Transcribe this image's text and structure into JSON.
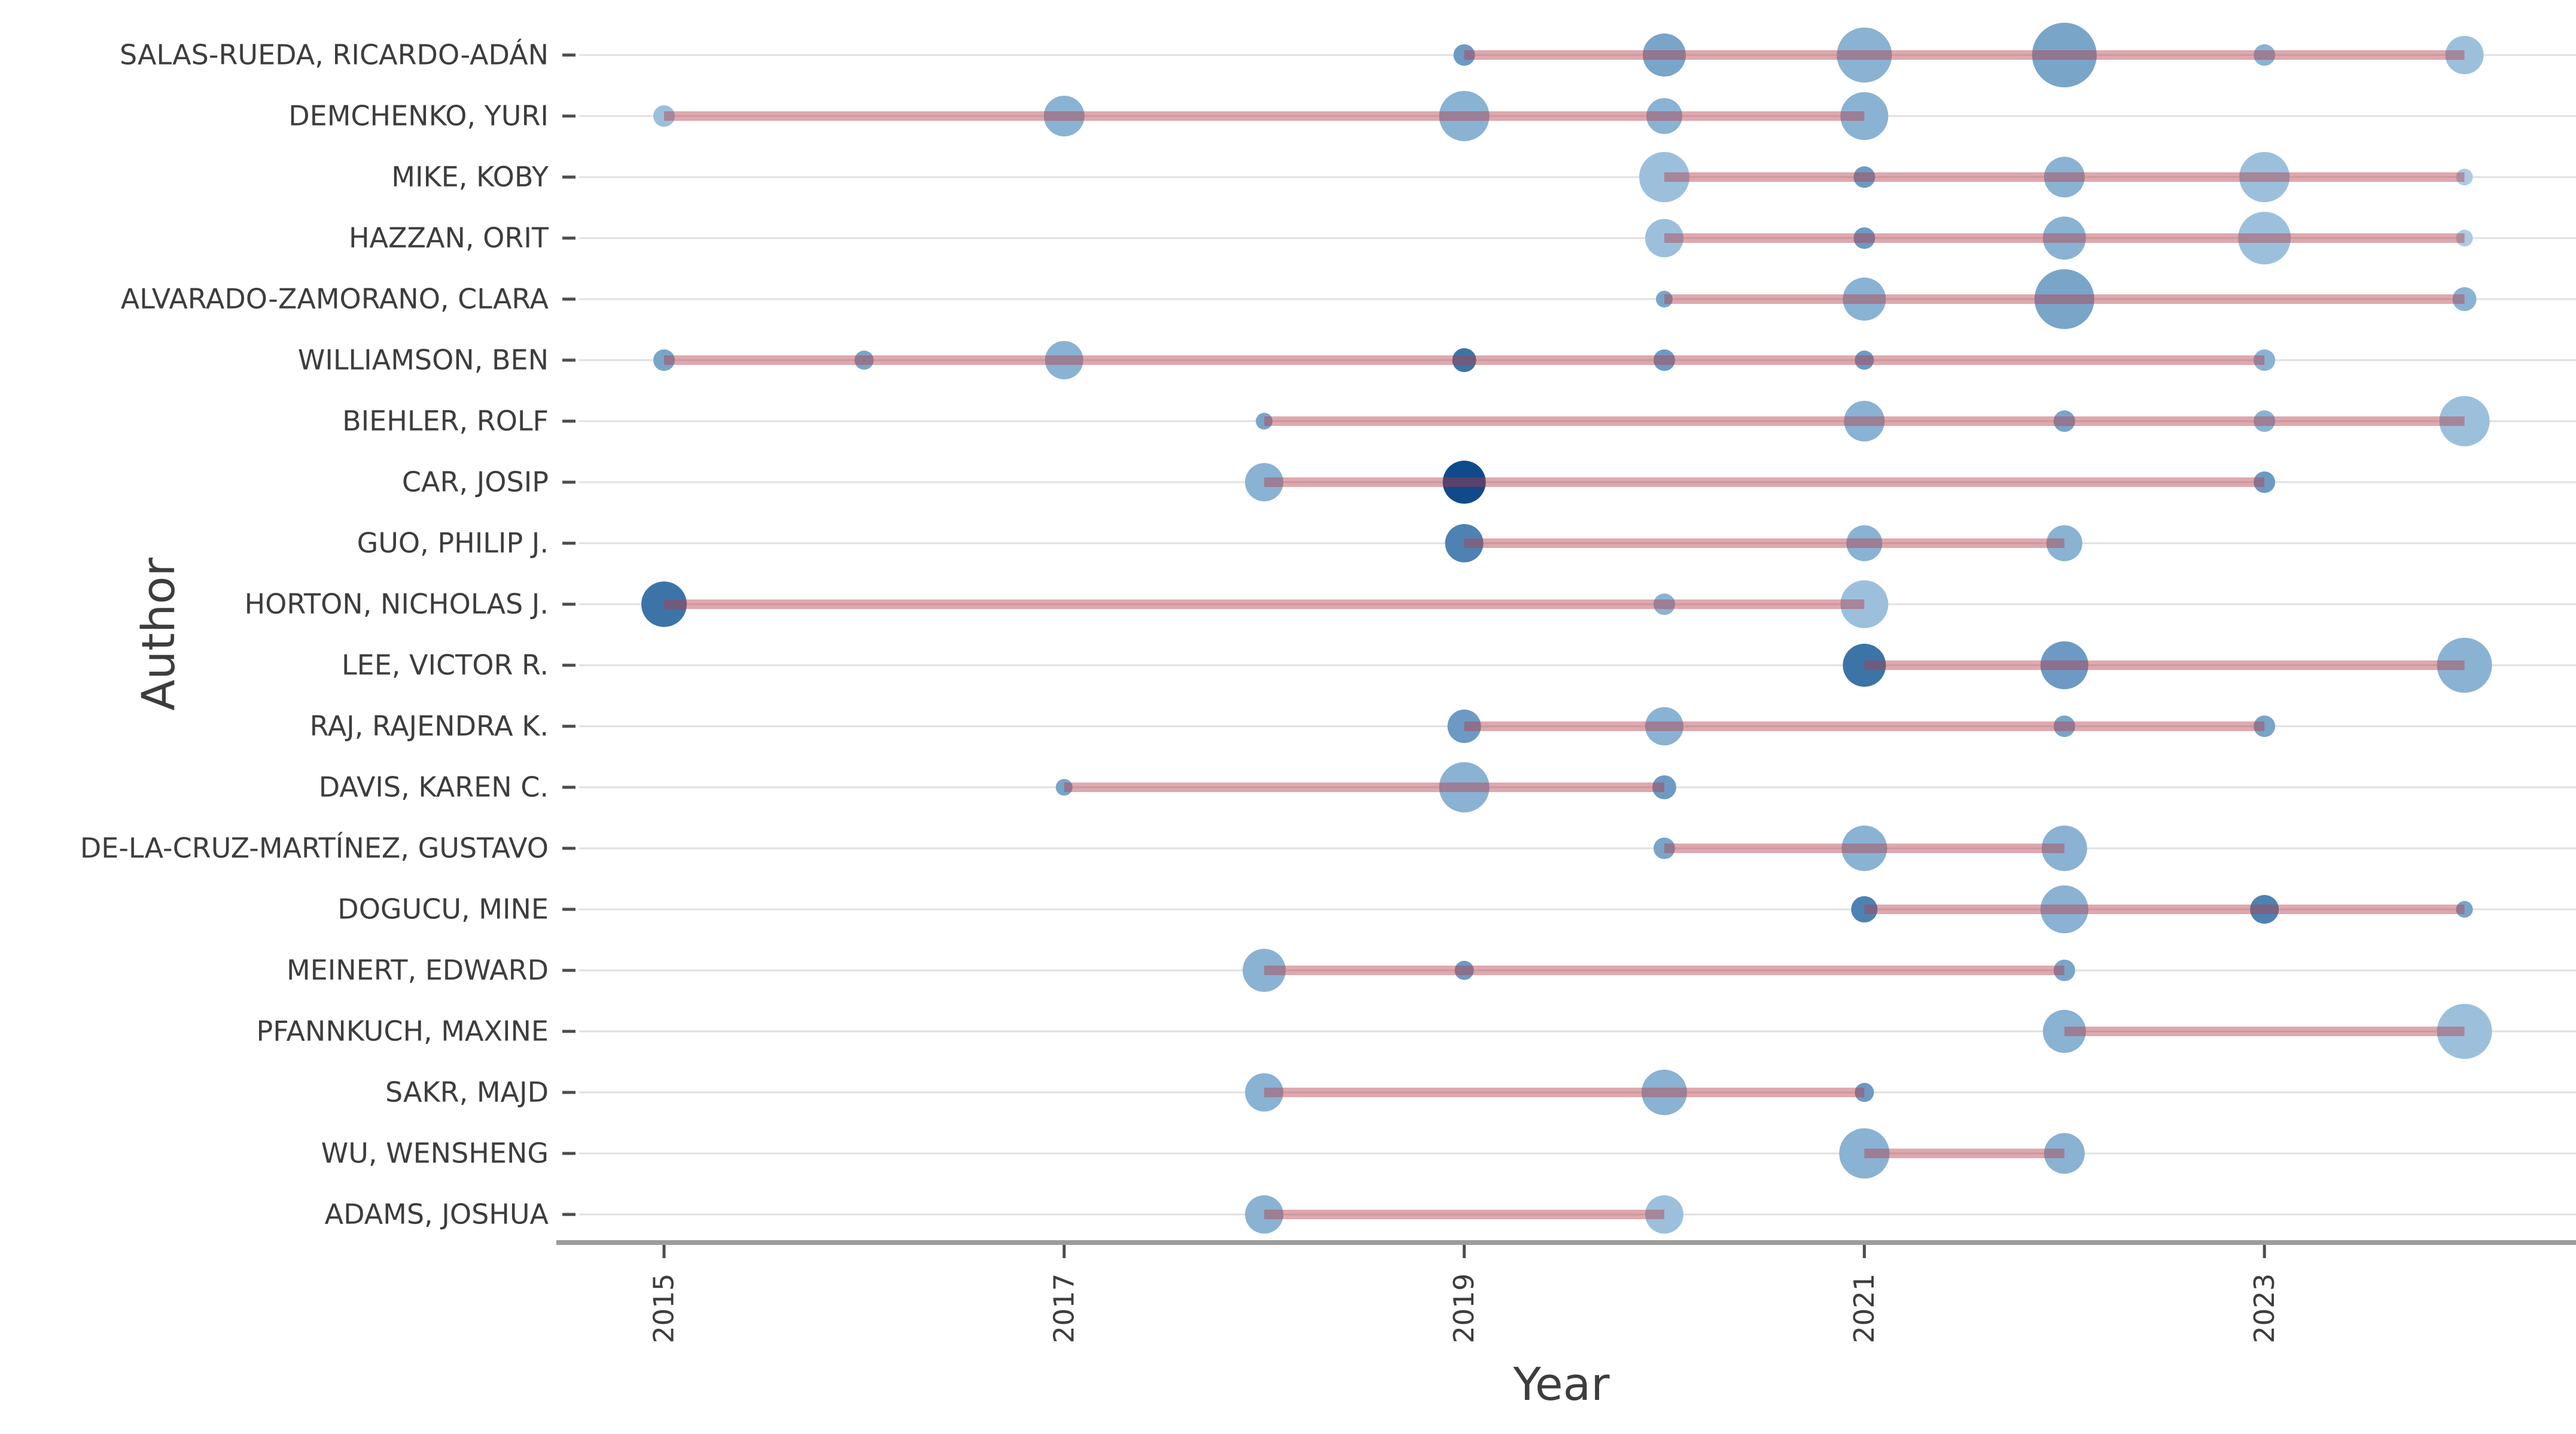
{
  "chart_data": {
    "type": "scatter",
    "subtype": "bubble-timeline",
    "title": "",
    "xlabel": "Year",
    "ylabel": "Author",
    "x_ticks": [
      2015,
      2017,
      2019,
      2021,
      2023
    ],
    "x_range": [
      2014.5,
      2024.6
    ],
    "grid": "horizontal-only",
    "legend": "none",
    "palette": {
      "l1": "#aecbe3",
      "l2": "#9cc0dc",
      "l3": "#8ab2d3",
      "m1": "#79a5c9",
      "m2": "#6d9ac4",
      "d1": "#4d82b2",
      "d2": "#3c74a8",
      "navy": "#114a8b"
    },
    "colors": {
      "timeline_line": "rgba(180,60,70,0.44)",
      "gridline": "#e0e0e0",
      "axis_line": "#9c9c9c",
      "tick_mark": "#4d4d4d",
      "text": "#3d3d3d"
    },
    "authors": [
      {
        "name": "SALAS-RUEDA, RICARDO-ADÁN",
        "line": [
          2019,
          2024
        ],
        "bubbles": [
          {
            "year": 2019,
            "r": 18,
            "shade": "m2"
          },
          {
            "year": 2020,
            "r": 36,
            "shade": "m1"
          },
          {
            "year": 2021,
            "r": 46,
            "shade": "l3"
          },
          {
            "year": 2022,
            "r": 54,
            "shade": "m1"
          },
          {
            "year": 2023,
            "r": 18,
            "shade": "l3"
          },
          {
            "year": 2024,
            "r": 32,
            "shade": "l2"
          }
        ]
      },
      {
        "name": "DEMCHENKO, YURI",
        "line": [
          2015,
          2021
        ],
        "bubbles": [
          {
            "year": 2015,
            "r": 18,
            "shade": "l2"
          },
          {
            "year": 2017,
            "r": 34,
            "shade": "l3"
          },
          {
            "year": 2019,
            "r": 42,
            "shade": "l3"
          },
          {
            "year": 2020,
            "r": 30,
            "shade": "l3"
          },
          {
            "year": 2021,
            "r": 40,
            "shade": "l3"
          }
        ]
      },
      {
        "name": "MIKE, KOBY",
        "line": [
          2020,
          2024
        ],
        "bubbles": [
          {
            "year": 2020,
            "r": 42,
            "shade": "l2"
          },
          {
            "year": 2021,
            "r": 18,
            "shade": "m2"
          },
          {
            "year": 2022,
            "r": 34,
            "shade": "l3"
          },
          {
            "year": 2023,
            "r": 42,
            "shade": "l2"
          },
          {
            "year": 2024,
            "r": 14,
            "shade": "l1"
          }
        ]
      },
      {
        "name": "HAZZAN, ORIT",
        "line": [
          2020,
          2024
        ],
        "bubbles": [
          {
            "year": 2020,
            "r": 32,
            "shade": "l2"
          },
          {
            "year": 2021,
            "r": 18,
            "shade": "m2"
          },
          {
            "year": 2022,
            "r": 36,
            "shade": "l3"
          },
          {
            "year": 2023,
            "r": 44,
            "shade": "l2"
          },
          {
            "year": 2024,
            "r": 14,
            "shade": "l1"
          }
        ]
      },
      {
        "name": "ALVARADO-ZAMORANO, CLARA",
        "line": [
          2020,
          2024
        ],
        "bubbles": [
          {
            "year": 2020,
            "r": 14,
            "shade": "m1"
          },
          {
            "year": 2021,
            "r": 36,
            "shade": "l3"
          },
          {
            "year": 2022,
            "r": 50,
            "shade": "m1"
          },
          {
            "year": 2024,
            "r": 20,
            "shade": "l3"
          }
        ]
      },
      {
        "name": "WILLIAMSON, BEN",
        "line": [
          2015,
          2023
        ],
        "bubbles": [
          {
            "year": 2015,
            "r": 18,
            "shade": "m1"
          },
          {
            "year": 2016,
            "r": 16,
            "shade": "m1"
          },
          {
            "year": 2017,
            "r": 32,
            "shade": "l3"
          },
          {
            "year": 2019,
            "r": 20,
            "shade": "d2"
          },
          {
            "year": 2020,
            "r": 18,
            "shade": "m2"
          },
          {
            "year": 2021,
            "r": 16,
            "shade": "m2"
          },
          {
            "year": 2023,
            "r": 18,
            "shade": "l3"
          }
        ]
      },
      {
        "name": "BIEHLER, ROLF",
        "line": [
          2018,
          2024
        ],
        "bubbles": [
          {
            "year": 2018,
            "r": 14,
            "shade": "m1"
          },
          {
            "year": 2021,
            "r": 34,
            "shade": "l3"
          },
          {
            "year": 2022,
            "r": 18,
            "shade": "m1"
          },
          {
            "year": 2023,
            "r": 18,
            "shade": "l3"
          },
          {
            "year": 2024,
            "r": 42,
            "shade": "l2"
          }
        ]
      },
      {
        "name": "CAR, JOSIP",
        "line": [
          2018,
          2023
        ],
        "bubbles": [
          {
            "year": 2018,
            "r": 32,
            "shade": "l3"
          },
          {
            "year": 2019,
            "r": 36,
            "shade": "navy"
          },
          {
            "year": 2023,
            "r": 18,
            "shade": "m2"
          }
        ]
      },
      {
        "name": "GUO, PHILIP J.",
        "line": [
          2019,
          2022
        ],
        "bubbles": [
          {
            "year": 2019,
            "r": 32,
            "shade": "d1"
          },
          {
            "year": 2021,
            "r": 30,
            "shade": "l3"
          },
          {
            "year": 2022,
            "r": 30,
            "shade": "l3"
          }
        ]
      },
      {
        "name": "HORTON, NICHOLAS J.",
        "line": [
          2015,
          2021
        ],
        "bubbles": [
          {
            "year": 2015,
            "r": 38,
            "shade": "d2"
          },
          {
            "year": 2020,
            "r": 18,
            "shade": "l3"
          },
          {
            "year": 2021,
            "r": 40,
            "shade": "l2"
          }
        ]
      },
      {
        "name": "LEE, VICTOR R.",
        "line": [
          2021,
          2024
        ],
        "bubbles": [
          {
            "year": 2021,
            "r": 36,
            "shade": "d2"
          },
          {
            "year": 2022,
            "r": 40,
            "shade": "m2"
          },
          {
            "year": 2024,
            "r": 46,
            "shade": "l3"
          }
        ]
      },
      {
        "name": "RAJ, RAJENDRA K.",
        "line": [
          2019,
          2023
        ],
        "bubbles": [
          {
            "year": 2019,
            "r": 28,
            "shade": "m2"
          },
          {
            "year": 2020,
            "r": 32,
            "shade": "l3"
          },
          {
            "year": 2022,
            "r": 18,
            "shade": "m1"
          },
          {
            "year": 2023,
            "r": 18,
            "shade": "m1"
          }
        ]
      },
      {
        "name": "DAVIS, KAREN C.",
        "line": [
          2017,
          2020
        ],
        "bubbles": [
          {
            "year": 2017,
            "r": 14,
            "shade": "m1"
          },
          {
            "year": 2019,
            "r": 42,
            "shade": "l3"
          },
          {
            "year": 2020,
            "r": 20,
            "shade": "m2"
          }
        ]
      },
      {
        "name": "DE-LA-CRUZ-MARTÍNEZ, GUSTAVO",
        "line": [
          2020,
          2022
        ],
        "bubbles": [
          {
            "year": 2020,
            "r": 18,
            "shade": "m1"
          },
          {
            "year": 2021,
            "r": 38,
            "shade": "l3"
          },
          {
            "year": 2022,
            "r": 38,
            "shade": "l3"
          }
        ]
      },
      {
        "name": "DOGUCU, MINE",
        "line": [
          2021,
          2024
        ],
        "bubbles": [
          {
            "year": 2021,
            "r": 22,
            "shade": "d1"
          },
          {
            "year": 2022,
            "r": 40,
            "shade": "l3"
          },
          {
            "year": 2023,
            "r": 24,
            "shade": "d1"
          },
          {
            "year": 2024,
            "r": 14,
            "shade": "m1"
          }
        ]
      },
      {
        "name": "MEINERT, EDWARD",
        "line": [
          2018,
          2022
        ],
        "bubbles": [
          {
            "year": 2018,
            "r": 36,
            "shade": "l3"
          },
          {
            "year": 2019,
            "r": 16,
            "shade": "m2"
          },
          {
            "year": 2022,
            "r": 18,
            "shade": "m1"
          }
        ]
      },
      {
        "name": "PFANNKUCH, MAXINE",
        "line": [
          2022,
          2024
        ],
        "bubbles": [
          {
            "year": 2022,
            "r": 36,
            "shade": "l3"
          },
          {
            "year": 2024,
            "r": 46,
            "shade": "l2"
          }
        ]
      },
      {
        "name": "SAKR, MAJD",
        "line": [
          2018,
          2021
        ],
        "bubbles": [
          {
            "year": 2018,
            "r": 32,
            "shade": "l3"
          },
          {
            "year": 2020,
            "r": 38,
            "shade": "l3"
          },
          {
            "year": 2021,
            "r": 16,
            "shade": "m2"
          }
        ]
      },
      {
        "name": "WU, WENSHENG",
        "line": [
          2021,
          2022
        ],
        "bubbles": [
          {
            "year": 2021,
            "r": 42,
            "shade": "l3"
          },
          {
            "year": 2022,
            "r": 34,
            "shade": "l3"
          }
        ]
      },
      {
        "name": "ADAMS, JOSHUA",
        "line": [
          2018,
          2020
        ],
        "bubbles": [
          {
            "year": 2018,
            "r": 32,
            "shade": "l3"
          },
          {
            "year": 2020,
            "r": 32,
            "shade": "l2"
          }
        ]
      }
    ]
  }
}
